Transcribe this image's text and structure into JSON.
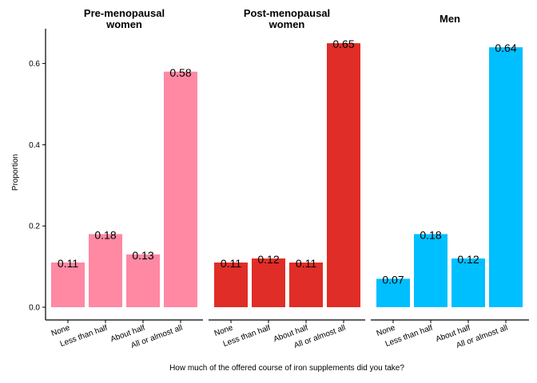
{
  "chart_data": {
    "type": "bar",
    "ylabel": "Proportion",
    "xlabel": "How much of the offered course of iron supplements did you take?",
    "categories": [
      "None",
      "Less than half",
      "About half",
      "All or almost all"
    ],
    "ylim": [
      0,
      0.68
    ],
    "yticks": [
      0.0,
      0.2,
      0.4,
      0.6
    ],
    "ytick_labels": [
      "0.0",
      "0.2",
      "0.4",
      "0.6"
    ],
    "grid": false,
    "facets": [
      {
        "title_line1": "Pre-menopausal",
        "title_line2": "women",
        "color": "#FF88A3",
        "values": [
          0.11,
          0.18,
          0.13,
          0.58
        ],
        "value_labels": [
          "0.11",
          "0.18",
          "0.13",
          "0.58"
        ]
      },
      {
        "title_line1": "Post-menopausal",
        "title_line2": "women",
        "color": "#E02D27",
        "values": [
          0.11,
          0.12,
          0.11,
          0.65
        ],
        "value_labels": [
          "0.11",
          "0.12",
          "0.11",
          "0.65"
        ]
      },
      {
        "title_line1": "Men",
        "title_line2": "",
        "color": "#00BFFF",
        "values": [
          0.07,
          0.18,
          0.12,
          0.64
        ],
        "value_labels": [
          "0.07",
          "0.18",
          "0.12",
          "0.64"
        ]
      }
    ]
  }
}
